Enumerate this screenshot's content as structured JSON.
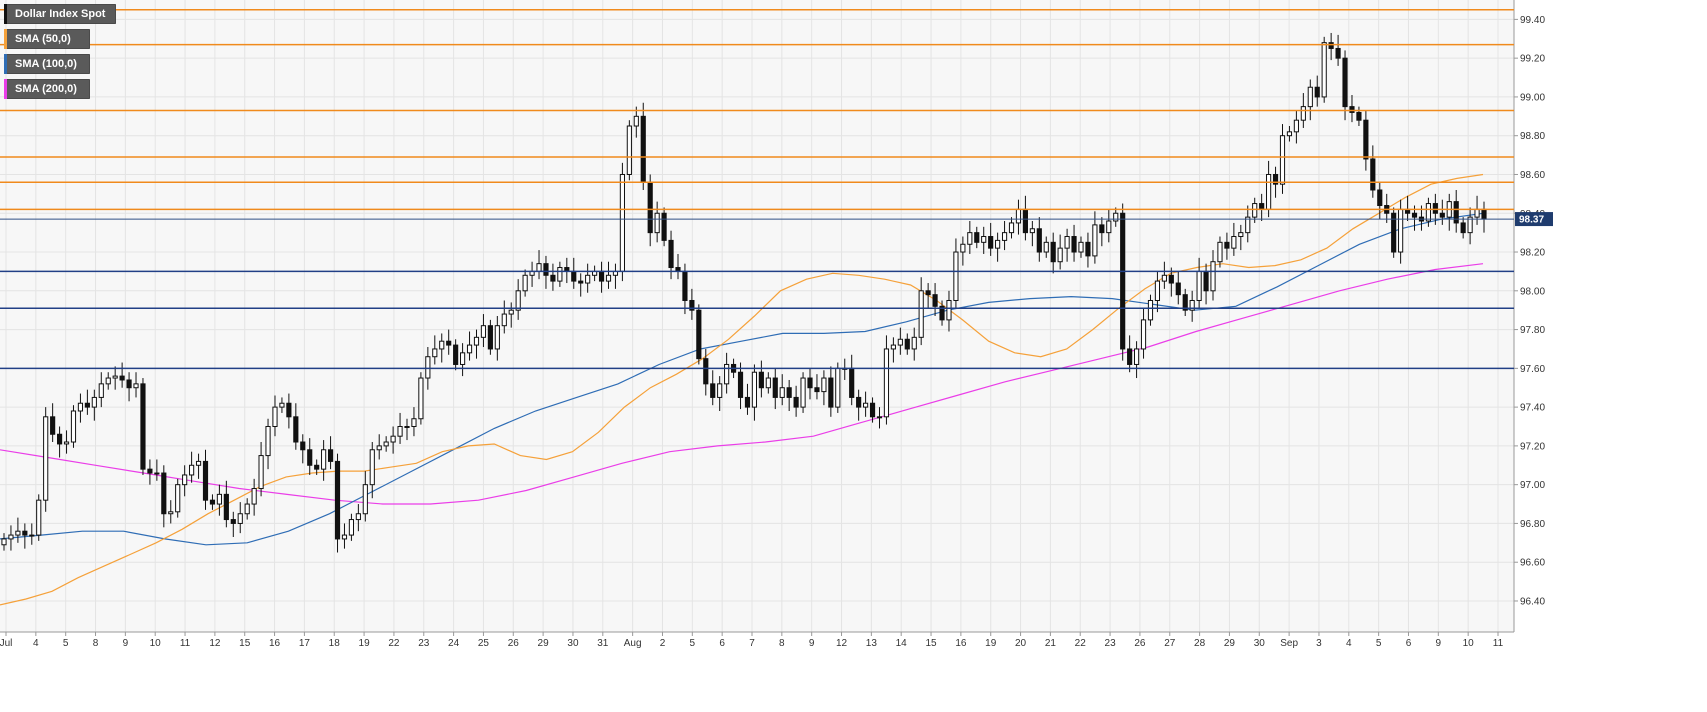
{
  "legend": {
    "main": {
      "label": "Dollar Index Spot",
      "color": "#111111"
    },
    "sma50": {
      "label": "SMA (50,0)",
      "color": "#f5a13a"
    },
    "sma100": {
      "label": "SMA (100,0)",
      "color": "#2f6db5"
    },
    "sma200": {
      "label": "SMA (200,0)",
      "color": "#ea3ee8"
    }
  },
  "price_badge": {
    "label": "98.37",
    "value": 98.37,
    "color": "#1f3c6e"
  },
  "chart_data": {
    "type": "candlestick",
    "title": "Dollar Index Spot",
    "ylim": [
      96.24,
      99.5
    ],
    "y_ticks": [
      "96.40",
      "96.60",
      "96.80",
      "97.00",
      "97.20",
      "97.40",
      "97.60",
      "97.80",
      "98.00",
      "98.20",
      "98.40",
      "98.60",
      "98.80",
      "99.00",
      "99.20",
      "99.40"
    ],
    "x_ticks": [
      "Jul",
      "4",
      "5",
      "8",
      "9",
      "10",
      "11",
      "12",
      "15",
      "16",
      "17",
      "18",
      "19",
      "22",
      "23",
      "24",
      "25",
      "26",
      "29",
      "30",
      "31",
      "Aug",
      "2",
      "5",
      "6",
      "7",
      "8",
      "9",
      "12",
      "13",
      "14",
      "15",
      "16",
      "19",
      "20",
      "21",
      "22",
      "23",
      "26",
      "27",
      "28",
      "29",
      "30",
      "Sep",
      "3",
      "4",
      "5",
      "6",
      "9",
      "10",
      "11"
    ],
    "grid": true,
    "resistance_levels": [
      99.45,
      99.27,
      98.93,
      98.69,
      98.56,
      98.42
    ],
    "support_levels": [
      98.1,
      97.91,
      97.6
    ],
    "last_price_line": 98.37,
    "colors": {
      "resistance": "#f08a1c",
      "support": "#213f86",
      "last_price": "#2f4f86",
      "candle_up": "#ffffff",
      "candle_down": "#111111",
      "wick": "#111111"
    },
    "series": [
      {
        "name": "Dollar Index Spot",
        "type": "candlestick",
        "close": [
          96.72,
          96.74,
          96.76,
          96.74,
          96.74,
          96.92,
          97.35,
          97.26,
          97.21,
          97.22,
          97.38,
          97.42,
          97.4,
          97.45,
          97.52,
          97.55,
          97.56,
          97.54,
          97.5,
          97.52,
          97.08,
          97.06,
          97.06,
          96.85,
          96.86,
          97.0,
          97.05,
          97.1,
          97.12,
          96.92,
          96.9,
          96.95,
          96.82,
          96.8,
          96.85,
          96.9,
          96.98,
          97.15,
          97.3,
          97.4,
          97.42,
          97.35,
          97.22,
          97.18,
          97.1,
          97.08,
          97.18,
          97.12,
          96.72,
          96.74,
          96.82,
          96.85,
          97.0,
          97.18,
          97.2,
          97.22,
          97.25,
          97.3,
          97.3,
          97.34,
          97.55,
          97.66,
          97.7,
          97.74,
          97.72,
          97.62,
          97.68,
          97.72,
          97.76,
          97.82,
          97.7,
          97.82,
          97.88,
          97.9,
          98.0,
          98.08,
          98.1,
          98.14,
          98.08,
          98.05,
          98.12,
          98.1,
          98.05,
          98.04,
          98.08,
          98.1,
          98.05,
          98.08,
          98.1,
          98.6,
          98.85,
          98.9,
          98.56,
          98.3,
          98.4,
          98.26,
          98.12,
          98.1,
          97.95,
          97.9,
          97.65,
          97.52,
          97.45,
          97.52,
          97.62,
          97.58,
          97.45,
          97.4,
          97.58,
          97.5,
          97.55,
          97.45,
          97.5,
          97.45,
          97.4,
          97.55,
          97.5,
          97.48,
          97.55,
          97.4,
          97.6,
          97.6,
          97.45,
          97.4,
          97.42,
          97.35,
          97.35,
          97.7,
          97.72,
          97.75,
          97.7,
          97.76,
          98.0,
          97.98,
          97.92,
          97.85,
          97.95,
          98.2,
          98.24,
          98.3,
          98.25,
          98.28,
          98.22,
          98.26,
          98.3,
          98.35,
          98.42,
          98.3,
          98.32,
          98.2,
          98.25,
          98.15,
          98.22,
          98.28,
          98.2,
          98.25,
          98.18,
          98.34,
          98.3,
          98.36,
          98.4,
          97.7,
          97.62,
          97.7,
          97.85,
          97.95,
          98.05,
          98.08,
          98.04,
          97.98,
          97.9,
          97.95,
          98.1,
          98.0,
          98.15,
          98.25,
          98.22,
          98.28,
          98.3,
          98.38,
          98.45,
          98.42,
          98.6,
          98.55,
          98.8,
          98.82,
          98.88,
          98.95,
          99.05,
          99.0,
          99.28,
          99.25,
          99.2,
          98.95,
          98.92,
          98.88,
          98.68,
          98.52,
          98.44,
          98.4,
          98.2,
          98.42,
          98.4,
          98.38,
          98.36,
          98.45,
          98.4,
          98.38,
          98.46,
          98.35,
          98.3,
          98.38,
          98.42,
          98.37
        ]
      },
      {
        "name": "SMA (50,0)",
        "values": [
          96.38,
          96.41,
          96.45,
          96.52,
          96.58,
          96.64,
          96.7,
          96.77,
          96.85,
          96.92,
          96.99,
          97.04,
          97.06,
          97.07,
          97.07,
          97.09,
          97.11,
          97.17,
          97.2,
          97.21,
          97.15,
          97.13,
          97.17,
          97.27,
          97.4,
          97.5,
          97.57,
          97.65,
          97.75,
          97.87,
          98.0,
          98.06,
          98.09,
          98.08,
          98.06,
          98.03,
          97.95,
          97.85,
          97.74,
          97.68,
          97.66,
          97.7,
          97.8,
          97.91,
          98.01,
          98.09,
          98.12,
          98.14,
          98.12,
          98.13,
          98.16,
          98.22,
          98.32,
          98.4,
          98.48,
          98.55,
          98.58,
          98.6
        ]
      },
      {
        "name": "SMA (100,0)",
        "values": [
          96.72,
          96.74,
          96.76,
          96.76,
          96.72,
          96.69,
          96.7,
          96.76,
          96.85,
          96.96,
          97.07,
          97.18,
          97.29,
          97.38,
          97.45,
          97.52,
          97.62,
          97.7,
          97.74,
          97.78,
          97.78,
          97.79,
          97.84,
          97.9,
          97.94,
          97.96,
          97.97,
          97.96,
          97.93,
          97.9,
          97.92,
          98.02,
          98.13,
          98.24,
          98.32,
          98.37,
          98.4
        ]
      },
      {
        "name": "SMA (200,0)",
        "values": [
          97.18,
          97.14,
          97.1,
          97.06,
          97.02,
          96.98,
          96.95,
          96.92,
          96.9,
          96.9,
          96.92,
          96.97,
          97.04,
          97.11,
          97.17,
          97.2,
          97.22,
          97.25,
          97.32,
          97.39,
          97.46,
          97.53,
          97.59,
          97.65,
          97.71,
          97.79,
          97.86,
          97.93,
          98.0,
          98.06,
          98.11,
          98.14
        ]
      }
    ]
  }
}
